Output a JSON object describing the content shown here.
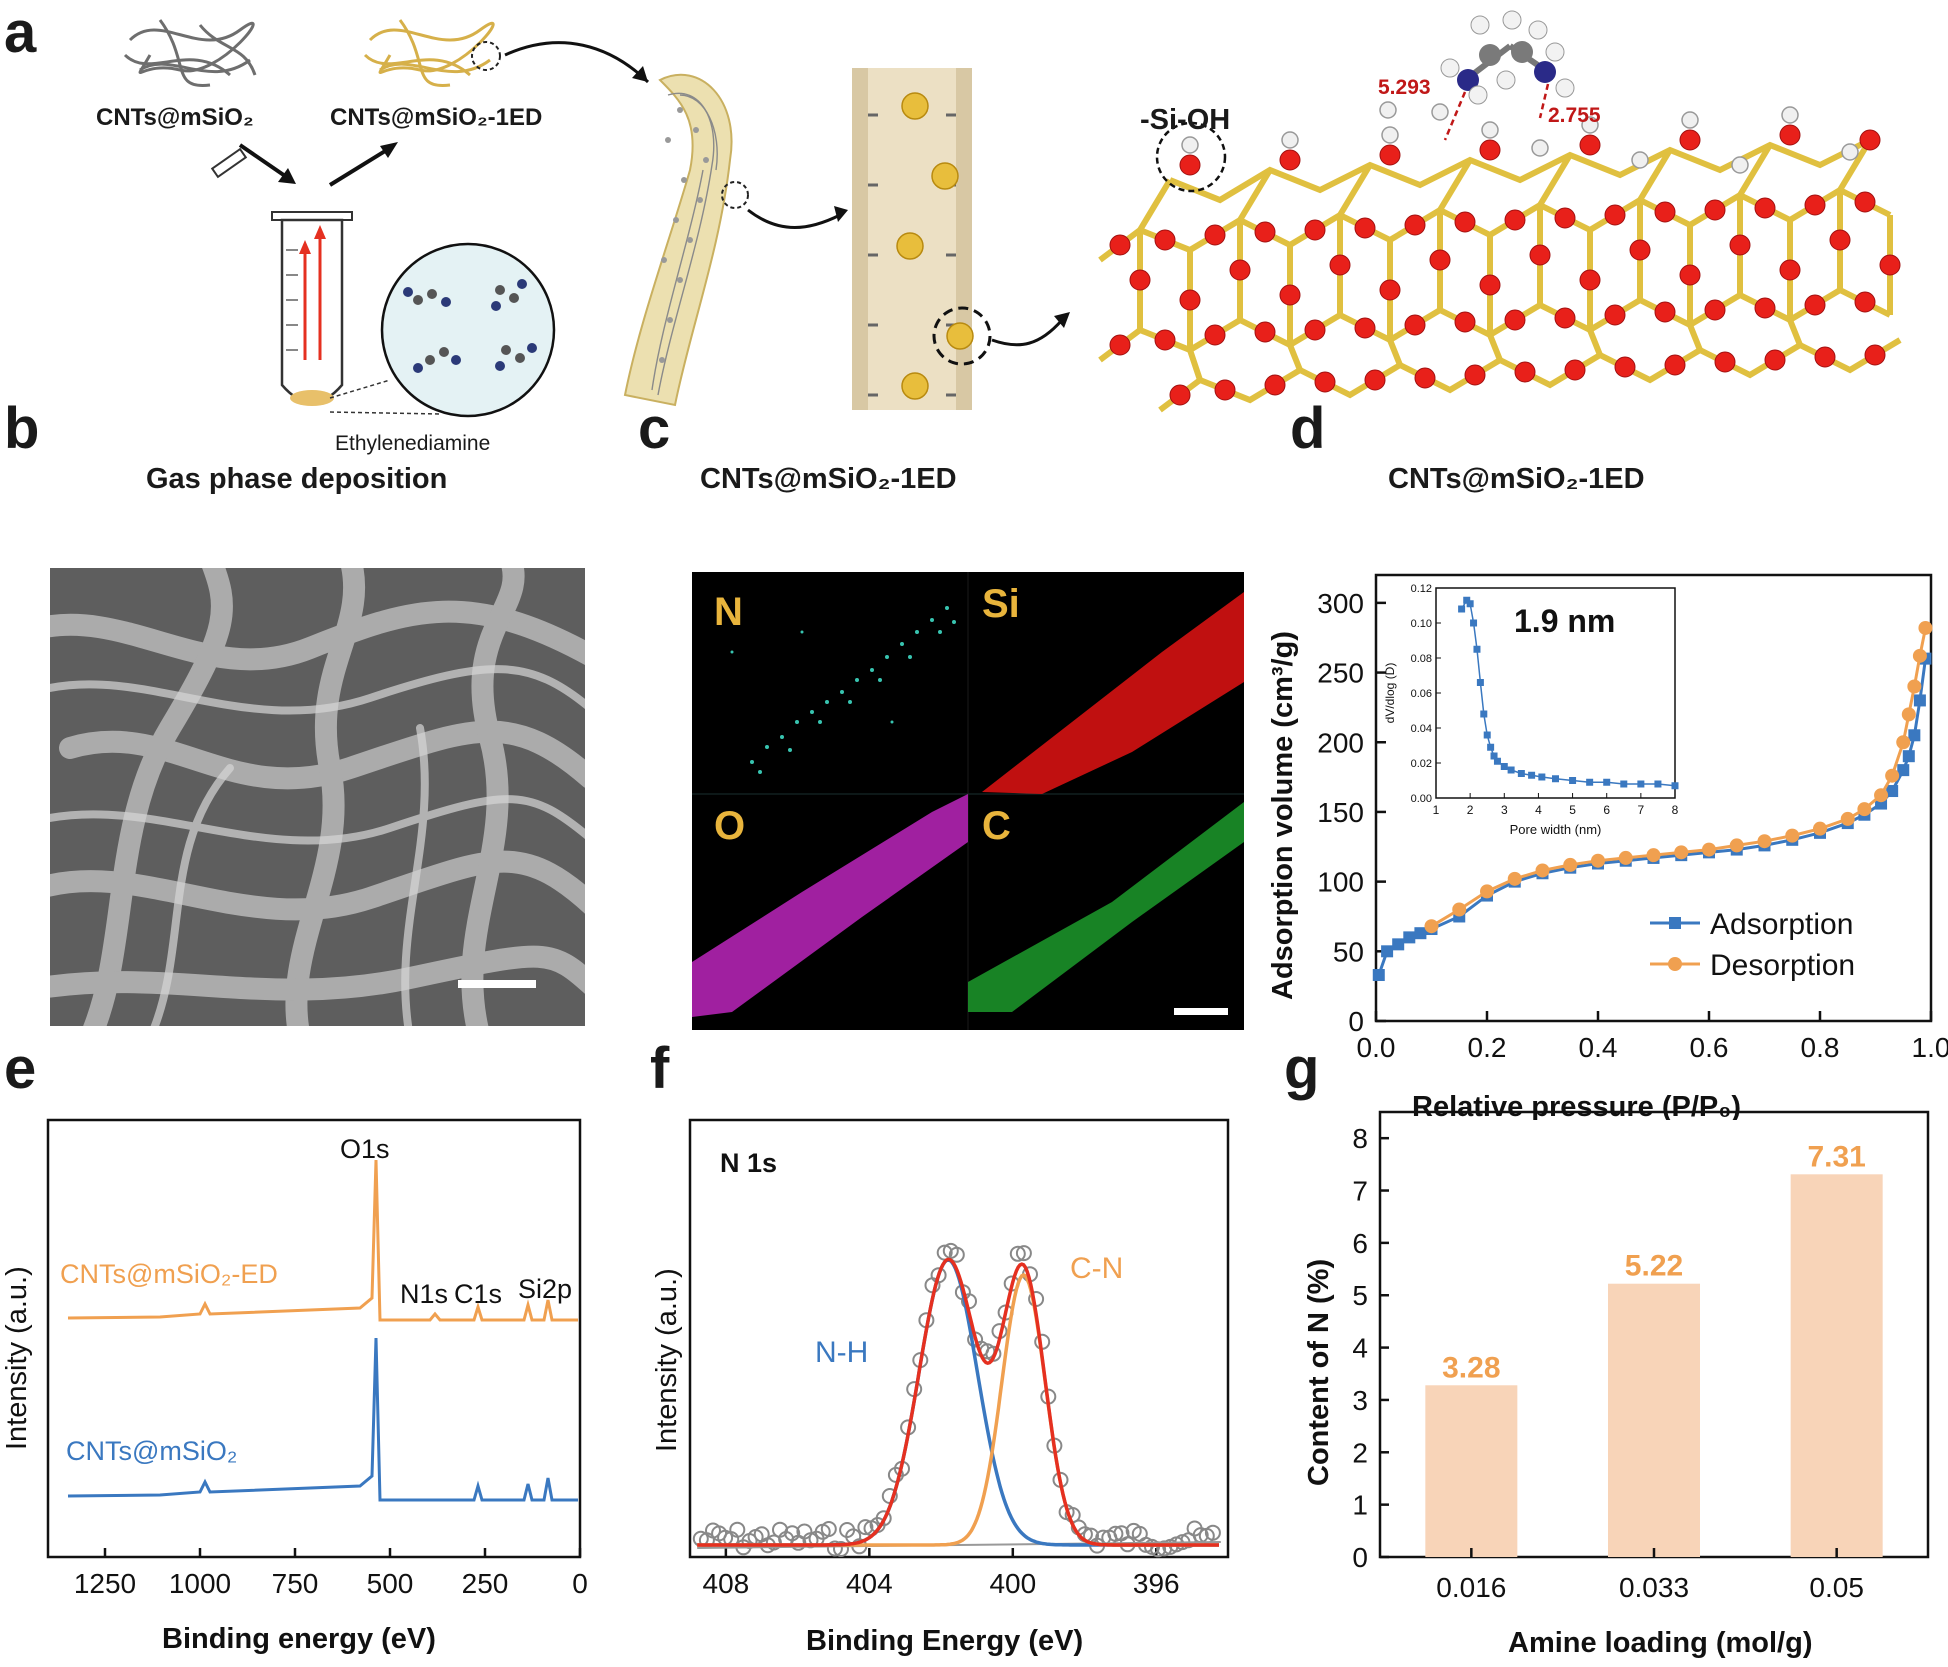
{
  "panels": {
    "a": "a",
    "b": "b",
    "c": "c",
    "d": "d",
    "e": "e",
    "f": "f",
    "g": "g"
  },
  "panel_a": {
    "label_cnts_msio2": "CNTs@mSiO₂",
    "label_cnts_msio2_1ed_top": "CNTs@mSiO₂-1ED",
    "label_ethylenediamine": "Ethylenediamine",
    "label_gas_phase": "Gas phase deposition",
    "label_tube_caption": "CNTs@mSiO₂-1ED",
    "label_lattice_caption": "CNTs@mSiO₂-1ED",
    "label_si_oh": "-Si-OH",
    "dist_1": "5.293",
    "dist_2": "2.755"
  },
  "panel_c": {
    "labels": [
      "N",
      "Si",
      "O",
      "C"
    ]
  },
  "panel_d": {
    "chart_data": {
      "type": "line",
      "xlabel": "Relative pressure (P/P₀)",
      "ylabel": "Adsorption volume (cm³/g)",
      "xlim": [
        0,
        1.0
      ],
      "ylim": [
        0,
        320
      ],
      "xticks": [
        "0.0",
        "0.2",
        "0.4",
        "0.6",
        "0.8",
        "1.0"
      ],
      "yticks": [
        "0",
        "50",
        "100",
        "150",
        "200",
        "250",
        "300"
      ],
      "legend_position": "bottom-right",
      "series": [
        {
          "name": "Adsorption",
          "color": "#3a78c0",
          "x": [
            0.005,
            0.02,
            0.04,
            0.06,
            0.08,
            0.1,
            0.15,
            0.2,
            0.25,
            0.3,
            0.35,
            0.4,
            0.45,
            0.5,
            0.55,
            0.6,
            0.65,
            0.7,
            0.75,
            0.8,
            0.85,
            0.88,
            0.91,
            0.93,
            0.95,
            0.96,
            0.97,
            0.98,
            0.99
          ],
          "y": [
            33,
            50,
            55,
            60,
            63,
            66,
            75,
            90,
            100,
            106,
            110,
            113,
            115,
            117,
            119,
            121,
            123,
            126,
            130,
            135,
            142,
            148,
            156,
            165,
            180,
            190,
            205,
            230,
            260
          ]
        },
        {
          "name": "Desorption",
          "color": "#f0a050",
          "x": [
            0.99,
            0.98,
            0.97,
            0.96,
            0.95,
            0.93,
            0.91,
            0.88,
            0.85,
            0.8,
            0.75,
            0.7,
            0.65,
            0.6,
            0.55,
            0.5,
            0.45,
            0.4,
            0.35,
            0.3,
            0.25,
            0.2,
            0.15,
            0.1
          ],
          "y": [
            282,
            262,
            240,
            220,
            200,
            176,
            162,
            152,
            145,
            138,
            133,
            129,
            126,
            123,
            121,
            119,
            117,
            115,
            112,
            108,
            102,
            93,
            80,
            68
          ]
        }
      ],
      "inset": {
        "annotation": "1.9 nm",
        "xlabel": "Pore width (nm)",
        "ylabel": "dV/dlog (D)",
        "xlim": [
          1,
          8
        ],
        "ylim": [
          0,
          0.12
        ],
        "xticks": [
          "1",
          "2",
          "3",
          "4",
          "5",
          "6",
          "7",
          "8"
        ],
        "yticks": [
          "0.00",
          "0.02",
          "0.04",
          "0.06",
          "0.08",
          "0.10",
          "0.12"
        ],
        "x": [
          1.75,
          1.9,
          2.0,
          2.1,
          2.2,
          2.3,
          2.4,
          2.5,
          2.6,
          2.7,
          2.8,
          3.0,
          3.2,
          3.5,
          3.8,
          4.1,
          4.5,
          5.0,
          5.5,
          6.0,
          6.5,
          7.0,
          7.5,
          8.0
        ],
        "y": [
          0.108,
          0.113,
          0.111,
          0.1,
          0.085,
          0.066,
          0.048,
          0.036,
          0.029,
          0.024,
          0.021,
          0.018,
          0.016,
          0.014,
          0.013,
          0.012,
          0.011,
          0.01,
          0.009,
          0.009,
          0.008,
          0.008,
          0.008,
          0.007
        ]
      }
    }
  },
  "panel_e": {
    "chart_data": {
      "type": "line",
      "xlabel": "Binding energy (eV)",
      "ylabel": "Intensity (a.u.)",
      "xlim": [
        1400,
        0
      ],
      "xticks": [
        "1250",
        "1000",
        "750",
        "500",
        "250",
        "0"
      ],
      "peaks": [
        "O1s",
        "N1s",
        "C1s",
        "Si2p"
      ],
      "series": [
        {
          "name": "CNTs@mSiO₂-ED",
          "color": "#f0a050"
        },
        {
          "name": "CNTs@mSiO₂",
          "color": "#3a78c0"
        }
      ]
    }
  },
  "panel_f": {
    "chart_data": {
      "type": "line",
      "title": "N 1s",
      "xlabel": "Binding Energy (eV)",
      "ylabel": "Intensity (a.u.)",
      "xlim": [
        409,
        394
      ],
      "xticks": [
        "408",
        "404",
        "400",
        "396"
      ],
      "components": [
        {
          "name": "N-H",
          "center": 401.8,
          "color": "#3a78c0"
        },
        {
          "name": "C-N",
          "center": 399.7,
          "color": "#f0a050"
        }
      ],
      "envelope_color": "#e53020"
    }
  },
  "panel_g": {
    "chart_data": {
      "type": "bar",
      "xlabel": "Amine loading (mol/g)",
      "ylabel": "Content of N (%)",
      "categories": [
        "0.016",
        "0.033",
        "0.05"
      ],
      "values": [
        3.28,
        5.22,
        7.31
      ],
      "value_labels": [
        "3.28",
        "5.22",
        "7.31"
      ],
      "ylim": [
        0,
        8.5
      ],
      "yticks": [
        "0",
        "1",
        "2",
        "3",
        "4",
        "5",
        "6",
        "7",
        "8"
      ],
      "bar_color": "#f8d4b8",
      "label_color": "#f0a050"
    }
  }
}
